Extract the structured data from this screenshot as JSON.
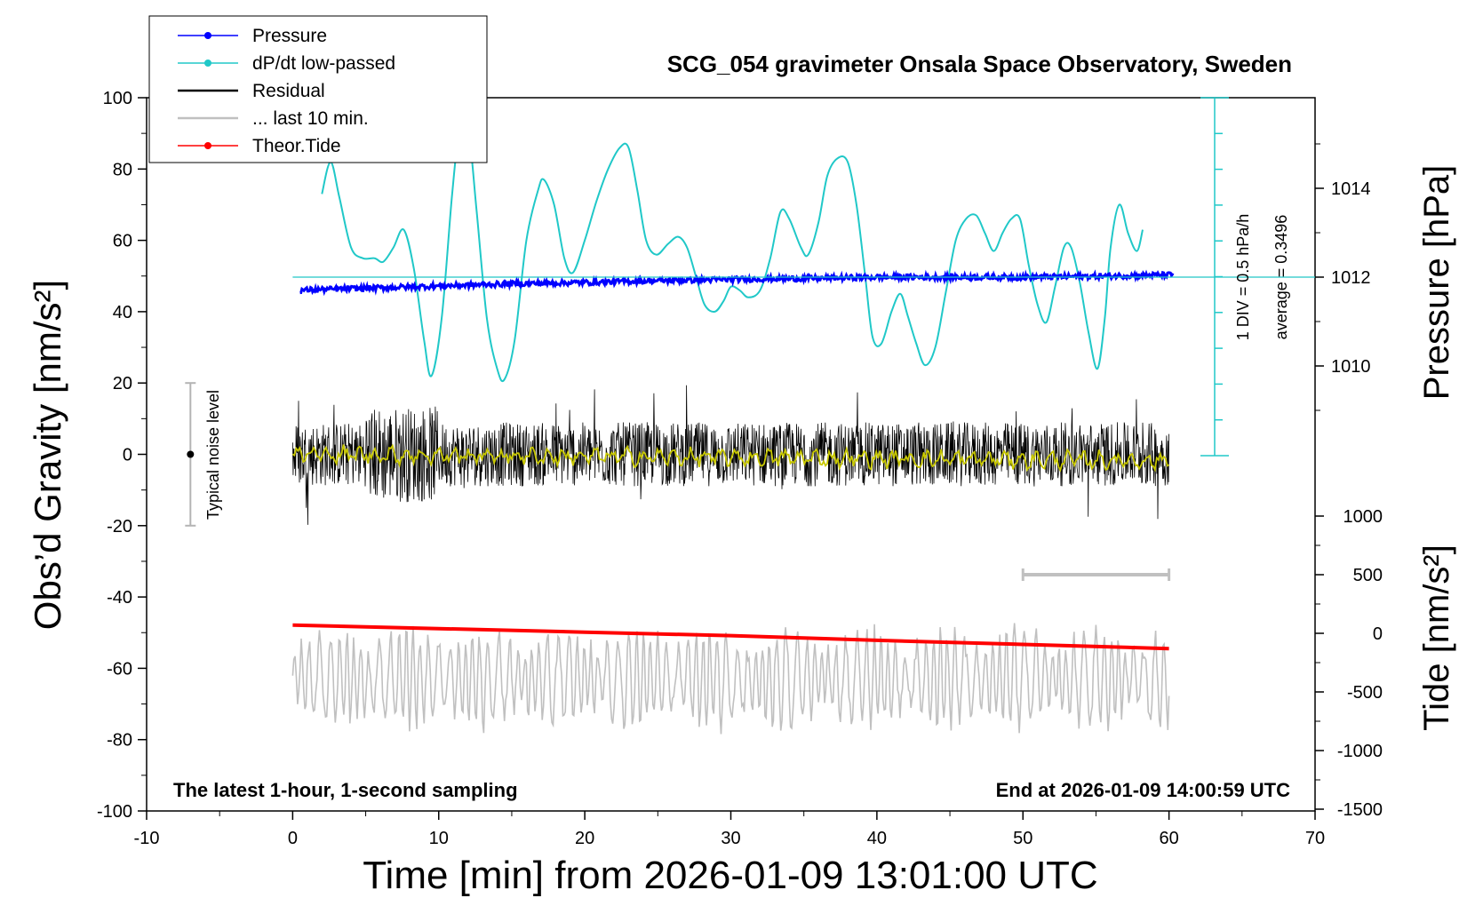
{
  "chart_data": {
    "type": "line",
    "title": "SCG_054 gravimeter Onsala Space Observatory, Sweden",
    "xlabel": "Time [min] from 2026-01-09 13:01:00 UTC",
    "ylabel_left": "Obs’d Gravity [nm/s²]",
    "ylabel_pressure": "Pressure [hPa]",
    "ylabel_tide": "Tide [nm/s²]",
    "xlim": [
      -10,
      70
    ],
    "ylim_left": [
      -100,
      100
    ],
    "xticks": [
      "-10",
      "0",
      "10",
      "20",
      "30",
      "40",
      "50",
      "60",
      "70"
    ],
    "yticks_left": [
      "100",
      "80",
      "60",
      "40",
      "20",
      "0",
      "-20",
      "-40",
      "-60",
      "-80",
      "-100"
    ],
    "pressure_ticks": [
      "1014",
      "1012",
      "1010"
    ],
    "tide_ticks": [
      "1000",
      "500",
      "0",
      "-500",
      "-1000",
      "-1500"
    ],
    "annotation_bottom_left": "The latest 1-hour, 1-second sampling",
    "annotation_bottom_right": "End at 2026-01-09 14:00:59 UTC",
    "noise_label": "Typical noise level",
    "noise_bar": {
      "x": -7,
      "center": 0,
      "half_range": 20
    },
    "dpdt_scale_label": "1 DIV = 0.5 hPa/h",
    "dpdt_average_label": "average = 0.3496",
    "last10_bar": {
      "x0": 50,
      "x1": 60,
      "tide": 500
    },
    "legend": [
      {
        "label": "Pressure",
        "color": "#0000ff",
        "marker": true
      },
      {
        "label": "dP/dt low-passed",
        "color": "#20c8c8",
        "marker": true
      },
      {
        "label": "Residual",
        "color": "#000000",
        "marker": false
      },
      {
        "label": "... last 10 min.",
        "color": "#c0c0c0",
        "marker": false
      },
      {
        "label": "Theor.Tide",
        "color": "#ff0000",
        "marker": true
      }
    ],
    "colors": {
      "pressure": "#0000ff",
      "dpdt": "#20c8c8",
      "residual": "#000000",
      "residual_smooth": "#c8c800",
      "last10": "#c0c0c0",
      "tide": "#ff0000",
      "noise_bar": "#b4b4b4"
    },
    "series": [
      {
        "name": "Pressure",
        "axis": "pressure",
        "x": [
          0,
          5,
          10,
          15,
          20,
          25,
          30,
          35,
          40,
          45,
          50,
          55,
          60
        ],
        "values": [
          1011.7,
          1011.75,
          1011.8,
          1011.85,
          1011.88,
          1011.92,
          1011.95,
          1011.97,
          1012.0,
          1012.0,
          1012.0,
          1012.02,
          1012.05
        ]
      },
      {
        "name": "dP/dt low-passed",
        "axis": "left_display",
        "x": [
          2,
          2.6,
          3.2,
          4,
          4.8,
          5.6,
          6.2,
          6.9,
          7.6,
          8.3,
          9.0,
          9.5,
          10.2,
          10.9,
          11.4,
          12.0,
          12.6,
          13.3,
          14.0,
          14.5,
          15.2,
          16.0,
          16.8,
          17.2,
          17.9,
          18.6,
          19.2,
          20.0,
          20.8,
          21.6,
          22.4,
          23.0,
          23.6,
          24.2,
          24.9,
          25.7,
          26.4,
          27.0,
          27.6,
          28.2,
          28.9,
          29.5,
          30.0,
          30.6,
          31.2,
          32.0,
          32.7,
          33.4,
          34.0,
          34.8,
          35.3,
          36.0,
          36.6,
          37.3,
          38.0,
          38.6,
          39.2,
          39.7,
          40.3,
          41.0,
          41.6,
          42.1,
          42.7,
          43.3,
          44.0,
          44.7,
          45.4,
          46.1,
          46.8,
          47.4,
          48.0,
          48.6,
          49.2,
          49.8,
          50.4,
          51.0,
          51.6,
          52.2,
          52.8,
          53.3,
          53.9,
          54.5,
          55.1,
          55.6,
          56.0,
          56.6,
          57.2,
          57.8,
          58.2
        ],
        "values": [
          73,
          82,
          72,
          58,
          55,
          55,
          54,
          58,
          63,
          52,
          32,
          22,
          38,
          72,
          90,
          92,
          68,
          38,
          24,
          21,
          32,
          60,
          74,
          77,
          70,
          55,
          51,
          60,
          71,
          80,
          86,
          86,
          74,
          60,
          56,
          59,
          61,
          58,
          50,
          42,
          40,
          43,
          47,
          46,
          44,
          46,
          55,
          68,
          66,
          58,
          56,
          65,
          78,
          83,
          82,
          70,
          50,
          33,
          31,
          40,
          45,
          39,
          31,
          25,
          30,
          45,
          60,
          66,
          67,
          62,
          57,
          62,
          66,
          66,
          53,
          42,
          37,
          47,
          58,
          58,
          48,
          34,
          24,
          38,
          58,
          70,
          62,
          57,
          63
        ]
      },
      {
        "name": "Residual",
        "axis": "left",
        "x": [
          0,
          60
        ],
        "values": [
          0,
          0
        ],
        "band": [
          -25,
          34
        ]
      },
      {
        "name": "... last 10 min.",
        "axis": "left",
        "x": [
          0,
          60
        ],
        "values": [
          -63,
          -63
        ],
        "band": [
          -87,
          -42
        ]
      },
      {
        "name": "Theor.Tide",
        "axis": "tide",
        "x": [
          0,
          10,
          20,
          30,
          40,
          50,
          60
        ],
        "values": [
          70,
          40,
          10,
          -20,
          -60,
          -95,
          -130
        ]
      }
    ]
  }
}
